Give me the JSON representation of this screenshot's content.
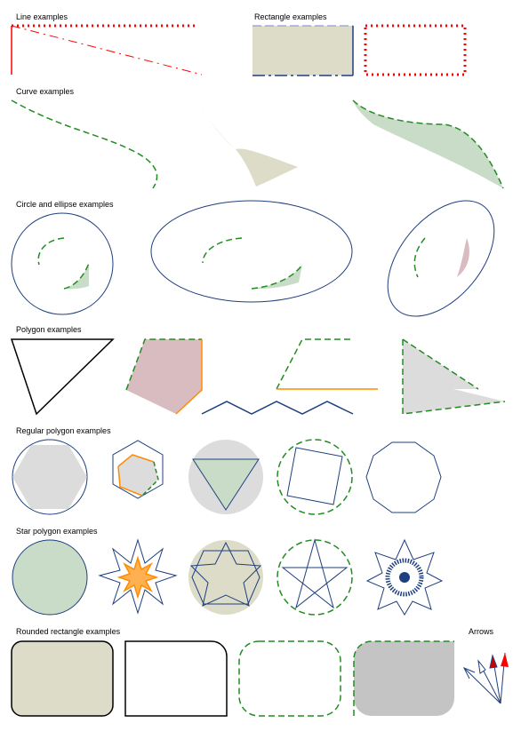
{
  "headings": {
    "line": "Line examples",
    "rectangle": "Rectangle examples",
    "curve": "Curve examples",
    "circle": "Circle and ellipse examples",
    "polygon": "Polygon examples",
    "regular_polygon": "Regular polygon examples",
    "star_polygon": "Star polygon examples",
    "rounded_rectangle": "Rounded rectangle examples",
    "arrows": "Arrows"
  },
  "colors": {
    "red": "#ff0000",
    "navy": "#1f3f7f",
    "green": "#228b22",
    "olive_fill": "#dcdcc8",
    "mauve_fill": "#d8bcc0",
    "green_fill": "#c8dcc8",
    "gray_fill": "#dcdcdc",
    "dark_gray_fill": "#c4c4c4",
    "orange": "#ff8c00",
    "black": "#000000"
  }
}
